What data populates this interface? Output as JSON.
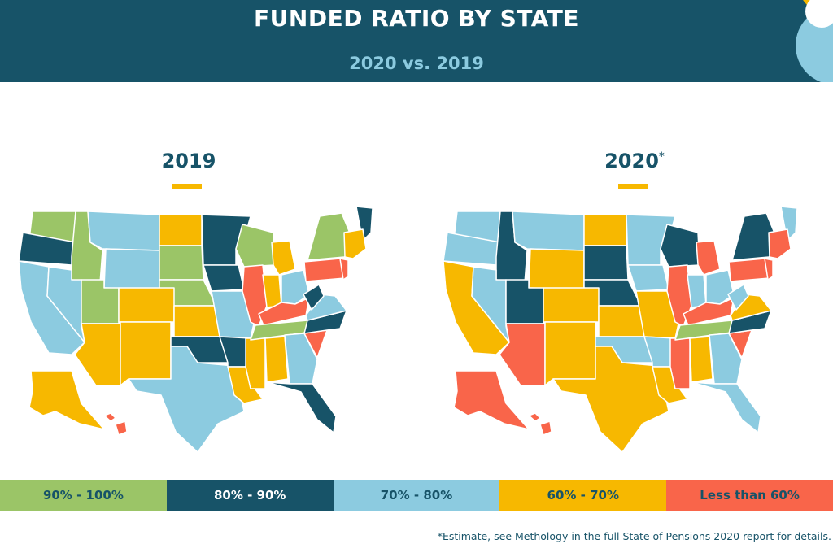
{
  "header": {
    "title": "FUNDED RATIO BY STATE",
    "subtitle": "2020 vs. 2019"
  },
  "maps": [
    {
      "year": "2019",
      "marker": ""
    },
    {
      "year": "2020",
      "marker": "*"
    }
  ],
  "legend": [
    {
      "label": "90% - 100%",
      "color": "#9bc567",
      "text_color": "#175368"
    },
    {
      "label": "80% - 90%",
      "color": "#175368",
      "text_color": "#ffffff"
    },
    {
      "label": "70% - 80%",
      "color": "#8ccbe0",
      "text_color": "#175368"
    },
    {
      "label": "60% - 70%",
      "color": "#f7b800",
      "text_color": "#175368"
    },
    {
      "label": "Less than 60%",
      "color": "#f9654a",
      "text_color": "#175368"
    }
  ],
  "footnote": "*Estimate, see Methology in the full State of Pensions 2020 report for details.",
  "state_colors": {
    "2019": {
      "WA": "#9bc567",
      "OR": "#175368",
      "CA": "#8ccbe0",
      "ID": "#9bc567",
      "NV": "#8ccbe0",
      "MT": "#8ccbe0",
      "WY": "#8ccbe0",
      "UT": "#9bc567",
      "AZ": "#f7b800",
      "ND": "#f7b800",
      "SD": "#9bc567",
      "NE": "#9bc567",
      "CO": "#f7b800",
      "NM": "#f7b800",
      "KS": "#f7b800",
      "OK": "#175368",
      "TX": "#8ccbe0",
      "MN": "#175368",
      "IA": "#175368",
      "MO": "#8ccbe0",
      "AR": "#175368",
      "LA": "#f7b800",
      "WI": "#9bc567",
      "IL": "#f9654a",
      "MS": "#f7b800",
      "MI": "#f7b800",
      "IN": "#f7b800",
      "OH": "#8ccbe0",
      "KY": "#f9654a",
      "TN": "#9bc567",
      "AL": "#f7b800",
      "GA": "#8ccbe0",
      "FL": "#175368",
      "SC": "#f9654a",
      "NC": "#175368",
      "VA": "#8ccbe0",
      "WV": "#175368",
      "PA": "#f9654a",
      "NY": "#9bc567",
      "ME": "#175368",
      "NE_REG": "#f7b800",
      "NJ": "#f9654a",
      "AK": "#f7b800",
      "HI": "#f9654a"
    },
    "2020": {
      "WA": "#8ccbe0",
      "OR": "#8ccbe0",
      "CA": "#f7b800",
      "ID": "#175368",
      "NV": "#8ccbe0",
      "MT": "#8ccbe0",
      "WY": "#f7b800",
      "UT": "#175368",
      "AZ": "#f9654a",
      "ND": "#f7b800",
      "SD": "#175368",
      "NE": "#175368",
      "CO": "#f7b800",
      "NM": "#f7b800",
      "KS": "#f7b800",
      "OK": "#8ccbe0",
      "TX": "#f7b800",
      "MN": "#8ccbe0",
      "IA": "#8ccbe0",
      "MO": "#f7b800",
      "AR": "#8ccbe0",
      "LA": "#f7b800",
      "WI": "#175368",
      "IL": "#f9654a",
      "MS": "#f9654a",
      "MI": "#f9654a",
      "IN": "#8ccbe0",
      "OH": "#8ccbe0",
      "KY": "#f9654a",
      "TN": "#9bc567",
      "AL": "#f7b800",
      "GA": "#8ccbe0",
      "FL": "#8ccbe0",
      "SC": "#f9654a",
      "NC": "#175368",
      "VA": "#f7b800",
      "WV": "#8ccbe0",
      "PA": "#f9654a",
      "NY": "#175368",
      "ME": "#8ccbe0",
      "NE_REG": "#f9654a",
      "NJ": "#f9654a",
      "AK": "#f9654a",
      "HI": "#f9654a"
    }
  }
}
